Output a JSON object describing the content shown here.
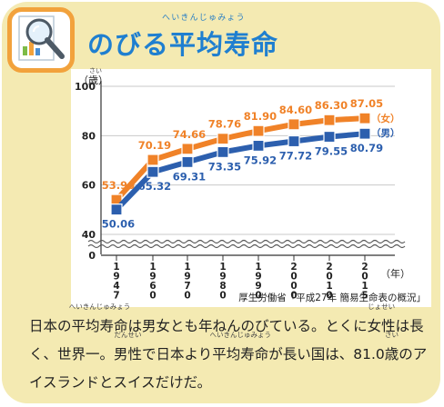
{
  "title": {
    "main": "のびる平均寿命",
    "ruby": "へいきんじゅみょう"
  },
  "chart_data": {
    "type": "line",
    "x": [
      "1947",
      "1960",
      "1970",
      "1980",
      "1990",
      "2000",
      "2010",
      "2015"
    ],
    "series": [
      {
        "name": "女",
        "color": "#f08228",
        "values": [
          53.96,
          70.19,
          74.66,
          78.76,
          81.9,
          84.6,
          86.3,
          87.05
        ],
        "labels": [
          "53.96",
          "70.19",
          "74.66",
          "78.76",
          "81.90",
          "84.60",
          "86.30",
          "87.05"
        ]
      },
      {
        "name": "男",
        "color": "#2c5fae",
        "values": [
          50.06,
          65.32,
          69.31,
          73.35,
          75.92,
          77.72,
          79.55,
          80.79
        ],
        "labels": [
          "50.06",
          "65.32",
          "69.31",
          "73.35",
          "75.92",
          "77.72",
          "79.55",
          "80.79"
        ]
      }
    ],
    "legend_female": "（女）",
    "legend_male": "（男）",
    "yticks": [
      "100",
      "80",
      "60",
      "40",
      "0"
    ],
    "y_unit_ruby": "さい",
    "y_unit": "（歳）",
    "x_unit": "（年）",
    "ylim": [
      0,
      100
    ],
    "axis_break": true,
    "source": "厚生労働省「平成27年 簡易生命表の概況」"
  },
  "paragraph": {
    "t1": "日本の",
    "r1": "平均寿命",
    "r1_ruby": "へいきんじゅみょう",
    "t2": "は男女とも年ねんのびている。とくに",
    "r2": "女性",
    "r2_ruby": "じょせい",
    "t3": "は長く、世界一。",
    "r3": "男性",
    "r3_ruby": "だんせい",
    "t4": "で日本より",
    "r4": "平均寿命",
    "r4_ruby": "へいきんじゅみょう",
    "t5": "が長い国は、81.0",
    "r5": "歳",
    "r5_ruby": "さい",
    "t6": "のアイスランドとスイスだけだ。"
  }
}
